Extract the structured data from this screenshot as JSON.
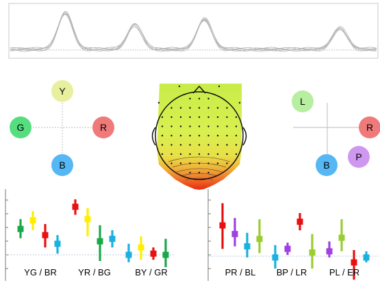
{
  "waveform": {
    "type": "line",
    "peaks": [
      {
        "x": 0.15,
        "height": 0.82
      },
      {
        "x": 0.34,
        "height": 0.56
      },
      {
        "x": 0.53,
        "height": 0.68
      },
      {
        "x": 0.9,
        "height": 0.48
      }
    ],
    "trace_count": 6,
    "line_color": "#b8b8b8",
    "baseline_color": "#999999"
  },
  "color_axes_left": {
    "nodes": [
      {
        "label": "Y",
        "color": "#e8f0a0"
      },
      {
        "label": "G",
        "color": "#55dd80"
      },
      {
        "label": "R",
        "color": "#f07a7a"
      },
      {
        "label": "B",
        "color": "#55b8f5"
      }
    ]
  },
  "color_axes_right": {
    "nodes": [
      {
        "label": "L",
        "color": "#b8eea0"
      },
      {
        "label": "R",
        "color": "#f07a7a"
      },
      {
        "label": "B",
        "color": "#55b8f5"
      },
      {
        "label": "P",
        "color": "#cf98f0"
      }
    ]
  },
  "topomap": {
    "type": "heatmap",
    "description_colors": [
      "#d8f050",
      "#e8c840",
      "#f08a30",
      "#e82a10"
    ],
    "electrode_rows": [
      3,
      7,
      9,
      9,
      9,
      9,
      9,
      7,
      3
    ]
  },
  "chart_data": [
    {
      "type": "errorbar",
      "groups": [
        {
          "label": "YG / BR",
          "series": [
            {
              "color": "#1aa84a",
              "value": 0.42,
              "low": 0.27,
              "high": 0.58
            },
            {
              "color": "#ffee00",
              "value": 0.56,
              "low": 0.4,
              "high": 0.71
            },
            {
              "color": "#e81010",
              "value": 0.32,
              "low": 0.12,
              "high": 0.5
            },
            {
              "color": "#1ab0e0",
              "value": 0.18,
              "low": 0.02,
              "high": 0.32
            }
          ]
        },
        {
          "label": "YR / BG",
          "series": [
            {
              "color": "#e81010",
              "value": 0.78,
              "low": 0.65,
              "high": 0.9
            },
            {
              "color": "#ffee00",
              "value": 0.58,
              "low": 0.3,
              "high": 0.76
            },
            {
              "color": "#1aa84a",
              "value": 0.22,
              "low": -0.1,
              "high": 0.48
            },
            {
              "color": "#1ab0e0",
              "value": 0.26,
              "low": 0.12,
              "high": 0.4
            }
          ]
        },
        {
          "label": "BY / GR",
          "series": [
            {
              "color": "#1ab0e0",
              "value": 0.0,
              "low": -0.12,
              "high": 0.18
            },
            {
              "color": "#ffee00",
              "value": 0.12,
              "low": -0.08,
              "high": 0.3
            },
            {
              "color": "#e81010",
              "value": 0.02,
              "low": -0.08,
              "high": 0.12
            },
            {
              "color": "#1aa84a",
              "value": 0.0,
              "low": -0.2,
              "high": 0.26
            }
          ]
        }
      ]
    },
    {
      "type": "errorbar",
      "groups": [
        {
          "label": "PR / BL",
          "series": [
            {
              "color": "#e81010",
              "value": 0.5,
              "low": 0.12,
              "high": 0.86
            },
            {
              "color": "#a040e0",
              "value": 0.36,
              "low": 0.16,
              "high": 0.62
            },
            {
              "color": "#1ab0e0",
              "value": 0.16,
              "low": -0.02,
              "high": 0.38
            },
            {
              "color": "#9acd32",
              "value": 0.28,
              "low": 0.05,
              "high": 0.6
            }
          ]
        },
        {
          "label": "BP / LR",
          "series": [
            {
              "color": "#1ab0e0",
              "value": -0.02,
              "low": -0.2,
              "high": 0.18
            },
            {
              "color": "#a040e0",
              "value": 0.12,
              "low": 0.02,
              "high": 0.22
            },
            {
              "color": "#e81010",
              "value": 0.56,
              "low": 0.42,
              "high": 0.7
            },
            {
              "color": "#9acd32",
              "value": 0.06,
              "low": -0.2,
              "high": 0.36
            }
          ]
        },
        {
          "label": "PL / ER",
          "series": [
            {
              "color": "#a040e0",
              "value": 0.08,
              "low": -0.02,
              "high": 0.24
            },
            {
              "color": "#9acd32",
              "value": 0.3,
              "low": 0.08,
              "high": 0.6
            },
            {
              "color": "#e81010",
              "value": -0.1,
              "low": -0.38,
              "high": 0.1
            },
            {
              "color": "#1ab0e0",
              "value": -0.02,
              "low": -0.1,
              "high": 0.08
            }
          ]
        }
      ]
    }
  ]
}
